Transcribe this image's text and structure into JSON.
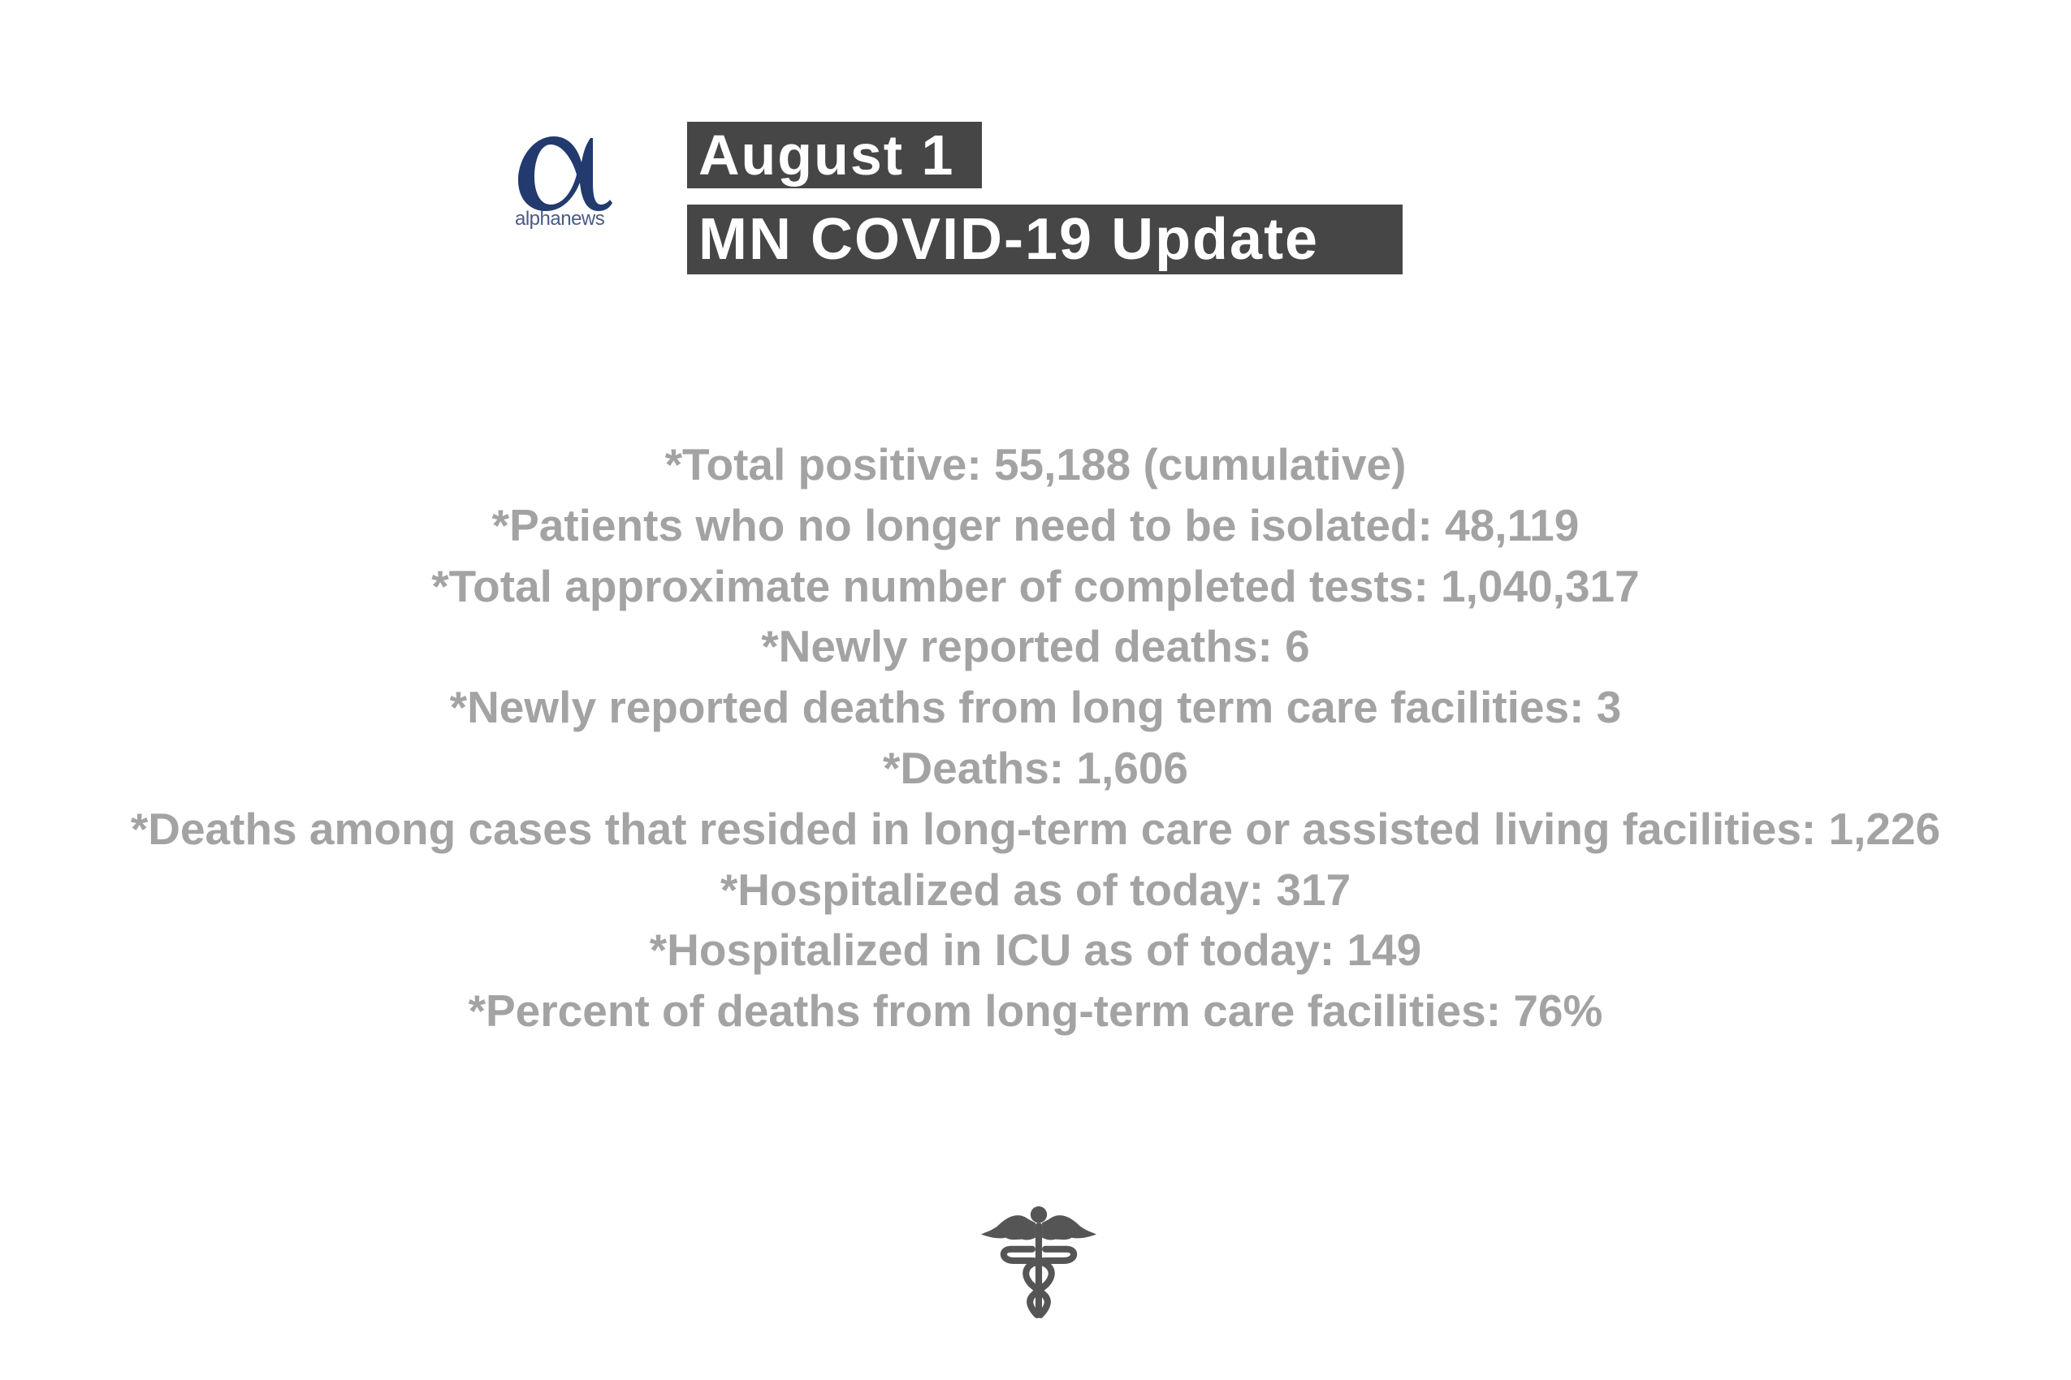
{
  "header": {
    "logo_text": "alphanews",
    "date": "August 1",
    "title": "MN COVID-19 Update"
  },
  "stats": [
    "*Total positive: 55,188 (cumulative)",
    "*Patients who no longer need to be isolated: 48,119",
    "*Total approximate number of completed tests: 1,040,317",
    "*Newly reported deaths: 6",
    "*Newly reported deaths from long term care facilities: 3",
    "*Deaths: 1,606",
    "*Deaths among cases that resided in long-term care or assisted living facilities: 1,226",
    "*Hospitalized as of today: 317",
    "*Hospitalized in ICU as of today: 149",
    "*Percent of deaths from long-term care facilities: 76%"
  ],
  "colors": {
    "logo": "#233a6e",
    "title_bg": "#464646",
    "stat_text": "#a3a3a3",
    "icon": "#555555"
  },
  "icons": {
    "footer": "caduceus-icon",
    "logo": "alpha-logo"
  }
}
